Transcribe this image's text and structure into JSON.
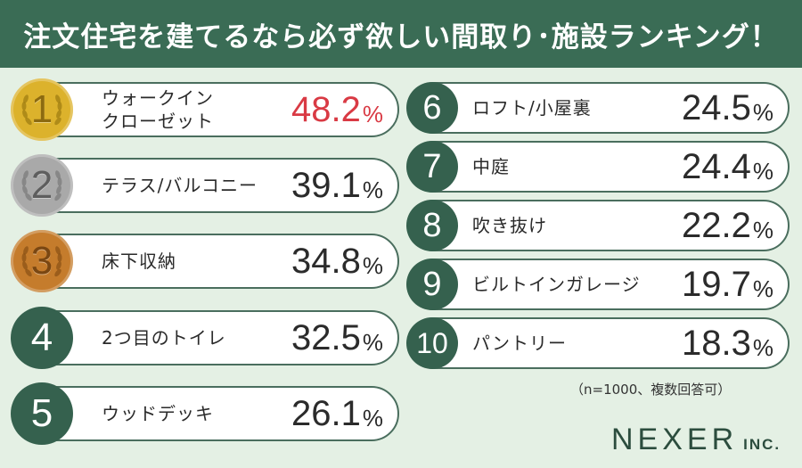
{
  "title": "注文住宅を建てるなら必ず欲しい間取り･施設ランキング！",
  "note": "（n=1000、複数回答可）",
  "logo": {
    "main": "NEXER",
    "sub": "INC."
  },
  "colors": {
    "header_bg": "#3a6c55",
    "background": "#e4f0e4",
    "rank_badge": "#35614e",
    "gold": "#dcb22c",
    "silver": "#a9a9a9",
    "bronze": "#c57c2c",
    "highlight_value": "#d93a44"
  },
  "chart_data": {
    "type": "table",
    "title": "注文住宅を建てるなら必ず欲しい間取り･施設ランキング！",
    "unit": "%",
    "columns": [
      "rank",
      "item",
      "percent"
    ],
    "rows": [
      {
        "rank": "1",
        "label": "ウォークイン\nクローゼット",
        "value": "48.2",
        "unit": "%"
      },
      {
        "rank": "2",
        "label": "テラス/バルコニー",
        "value": "39.1",
        "unit": "%"
      },
      {
        "rank": "3",
        "label": "床下収納",
        "value": "34.8",
        "unit": "%"
      },
      {
        "rank": "4",
        "label": "2つ目のトイレ",
        "value": "32.5",
        "unit": "%"
      },
      {
        "rank": "5",
        "label": "ウッドデッキ",
        "value": "26.1",
        "unit": "%"
      },
      {
        "rank": "6",
        "label": "ロフト/小屋裏",
        "value": "24.5",
        "unit": "%"
      },
      {
        "rank": "7",
        "label": "中庭",
        "value": "24.4",
        "unit": "%"
      },
      {
        "rank": "8",
        "label": "吹き抜け",
        "value": "22.2",
        "unit": "%"
      },
      {
        "rank": "9",
        "label": "ビルトインガレージ",
        "value": "19.7",
        "unit": "%"
      },
      {
        "rank": "10",
        "label": "パントリー",
        "value": "18.3",
        "unit": "%"
      }
    ]
  }
}
